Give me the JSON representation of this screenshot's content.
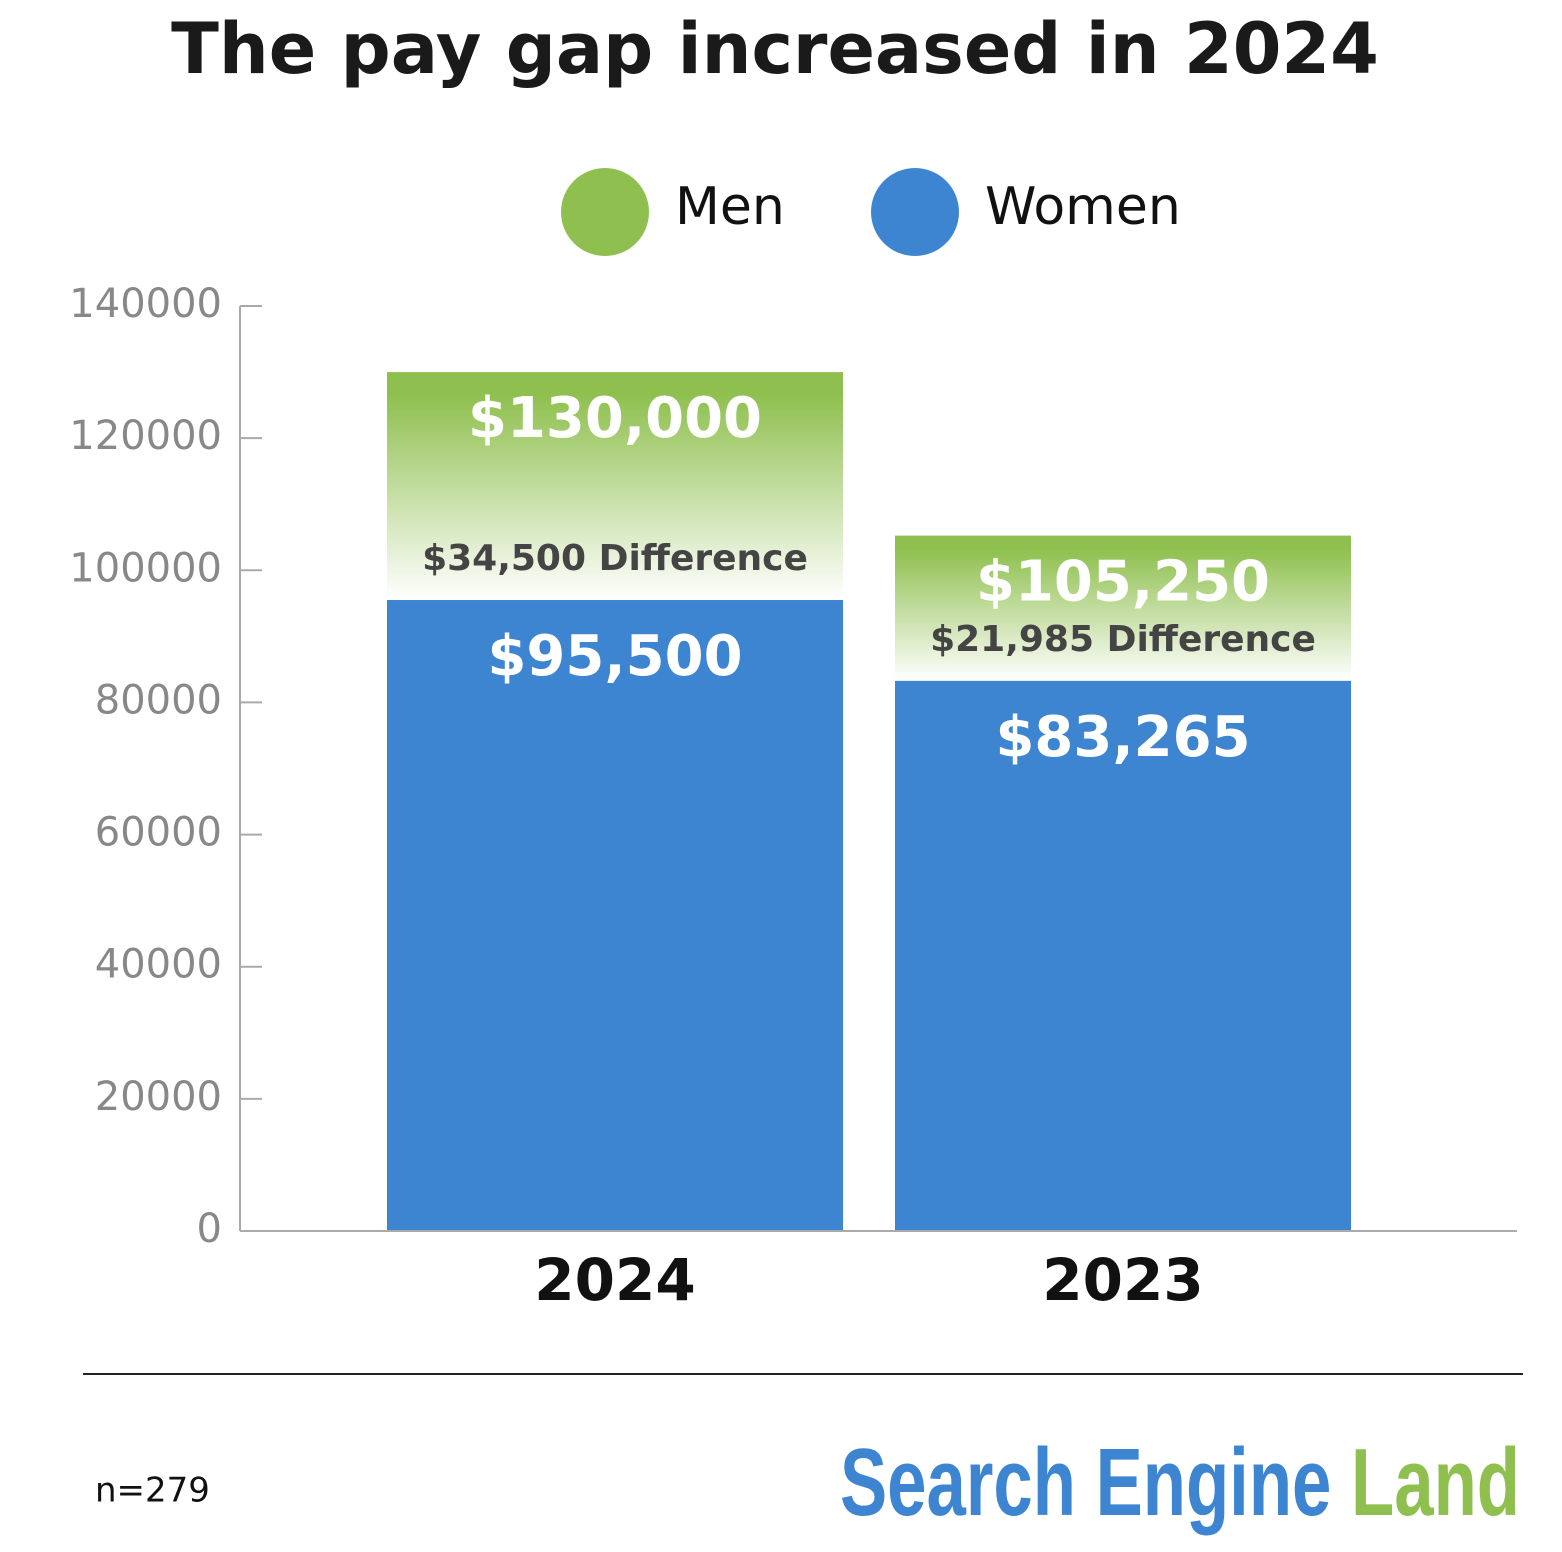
{
  "chart_data": {
    "type": "bar",
    "title": "The pay gap increased in 2024",
    "categories": [
      "2024",
      "2023"
    ],
    "series": [
      {
        "name": "Men",
        "color": "#8fc04f",
        "values": [
          130000,
          105250
        ],
        "value_labels": [
          "$130,000",
          "$105,250"
        ]
      },
      {
        "name": "Women",
        "color": "#3d85d1",
        "values": [
          95500,
          83265
        ],
        "value_labels": [
          "$95,500",
          "$83,265"
        ]
      }
    ],
    "annotations": [
      "$34,500 Difference",
      "$21,985 Difference"
    ],
    "ylim": [
      0,
      140000
    ],
    "yticks": [
      0,
      20000,
      40000,
      60000,
      80000,
      100000,
      120000,
      140000
    ],
    "note": "n=279",
    "logo": {
      "first": "Search Engine",
      "second": "Land"
    }
  }
}
